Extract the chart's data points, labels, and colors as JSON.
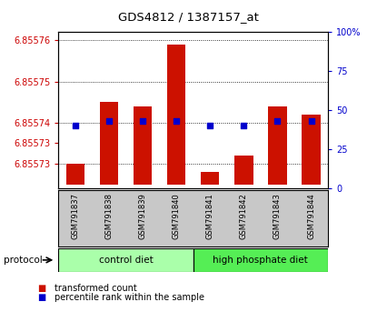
{
  "title": "GDS4812 / 1387157_at",
  "samples": [
    "GSM791837",
    "GSM791838",
    "GSM791839",
    "GSM791840",
    "GSM791841",
    "GSM791842",
    "GSM791843",
    "GSM791844"
  ],
  "group_labels": [
    "control diet",
    "high phosphate diet"
  ],
  "group_colors_light": [
    "#ccffcc",
    "#77ee77"
  ],
  "bar_bottom": 6.855725,
  "bar_tops": [
    6.85573,
    6.855745,
    6.855744,
    6.855759,
    6.855728,
    6.855732,
    6.855744,
    6.855742
  ],
  "percentile": [
    40,
    43,
    43,
    43,
    40,
    40,
    43,
    43
  ],
  "ylim_left": [
    6.855724,
    6.855762
  ],
  "ylim_right": [
    0,
    100
  ],
  "yticks_left_vals": [
    6.85573,
    6.855735,
    6.85574,
    6.85575,
    6.85576
  ],
  "ytick_left_labels": [
    "6.85573",
    "6.85573",
    "6.85574",
    "6.85575",
    "6.85576"
  ],
  "yticks_right": [
    0,
    25,
    50,
    75,
    100
  ],
  "ytick_right_labels": [
    "0",
    "25",
    "50",
    "75",
    "100%"
  ],
  "bar_color": "#cc1100",
  "marker_color": "#0000cc",
  "background_color": "#ffffff",
  "label_color_left": "#cc0000",
  "label_color_right": "#0000cc",
  "legend_items": [
    "transformed count",
    "percentile rank within the sample"
  ],
  "protocol_label": "protocol",
  "bar_width": 0.55
}
